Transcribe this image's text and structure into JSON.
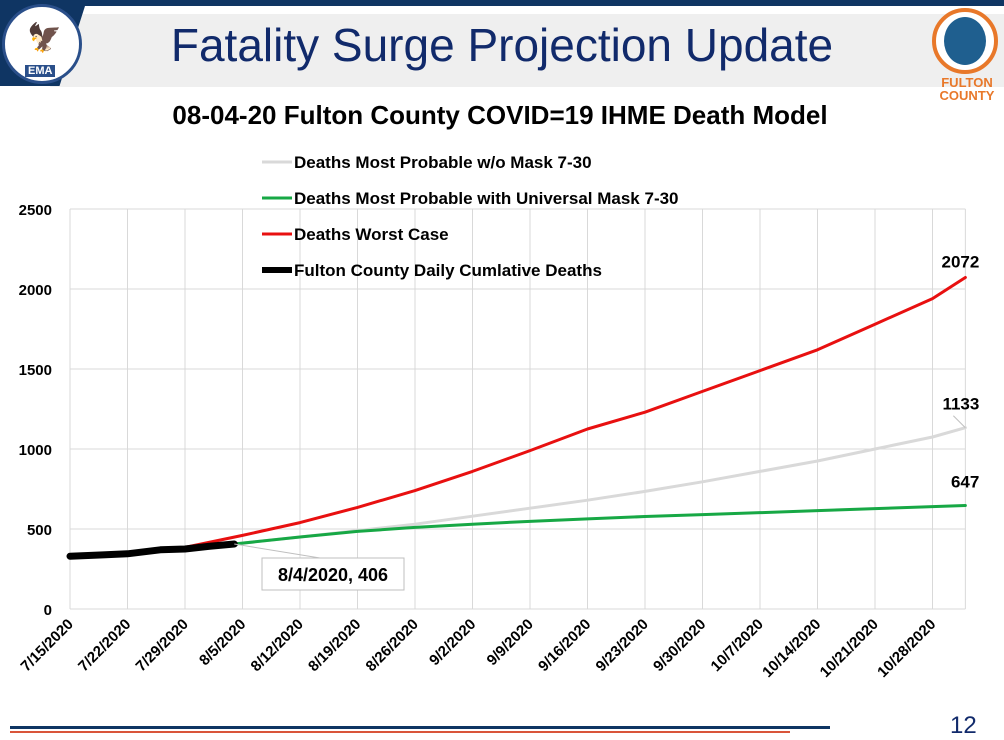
{
  "header": {
    "title": "Fatality Surge Projection Update",
    "page_number": "12",
    "left_logo_text": "EMA",
    "right_logo_text": "FULTON COUNTY"
  },
  "chart_data": {
    "type": "line",
    "title": "08-04-20 Fulton County COVID=19 IHME Death Model",
    "ylim": [
      0,
      2500
    ],
    "yticks": [
      0,
      500,
      1000,
      1500,
      2000,
      2500
    ],
    "xlim": [
      "2020-07-15",
      "2020-11-01"
    ],
    "xtick_labels": [
      "7/15/2020",
      "7/22/2020",
      "7/29/2020",
      "8/5/2020",
      "8/12/2020",
      "8/19/2020",
      "8/26/2020",
      "9/2/2020",
      "9/9/2020",
      "9/16/2020",
      "9/23/2020",
      "9/30/2020",
      "10/7/2020",
      "10/14/2020",
      "10/21/2020",
      "10/28/2020"
    ],
    "grid": true,
    "legend_position": "top",
    "series": [
      {
        "name": "Deaths Most Probable w/o Mask 7-30",
        "color": "#d9d9d9",
        "end_label": "1133",
        "x": [
          "2020-08-04",
          "2020-08-12",
          "2020-08-19",
          "2020-08-26",
          "2020-09-02",
          "2020-09-09",
          "2020-09-16",
          "2020-09-23",
          "2020-09-30",
          "2020-10-07",
          "2020-10-14",
          "2020-10-21",
          "2020-10-28",
          "2020-11-01"
        ],
        "y": [
          406,
          450,
          490,
          530,
          580,
          630,
          680,
          735,
          795,
          860,
          925,
          1000,
          1075,
          1133
        ]
      },
      {
        "name": "Deaths Most Probable with Universal Mask 7-30",
        "color": "#17a845",
        "end_label": "647",
        "x": [
          "2020-08-04",
          "2020-08-12",
          "2020-08-19",
          "2020-08-26",
          "2020-09-02",
          "2020-09-09",
          "2020-09-16",
          "2020-09-23",
          "2020-09-30",
          "2020-10-07",
          "2020-10-14",
          "2020-10-21",
          "2020-10-28",
          "2020-11-01"
        ],
        "y": [
          406,
          450,
          485,
          510,
          530,
          548,
          563,
          578,
          590,
          602,
          615,
          627,
          640,
          647
        ]
      },
      {
        "name": "Deaths Worst Case",
        "color": "#e81010",
        "end_label": "2072",
        "x": [
          "2020-07-29",
          "2020-08-05",
          "2020-08-12",
          "2020-08-19",
          "2020-08-26",
          "2020-09-02",
          "2020-09-09",
          "2020-09-16",
          "2020-09-23",
          "2020-09-30",
          "2020-10-07",
          "2020-10-14",
          "2020-10-21",
          "2020-10-28",
          "2020-11-01"
        ],
        "y": [
          385,
          460,
          540,
          635,
          740,
          860,
          990,
          1125,
          1230,
          1360,
          1490,
          1620,
          1780,
          1940,
          2072
        ]
      },
      {
        "name": "Fulton County Daily Cumlative Deaths",
        "color": "#000000",
        "x": [
          "2020-07-15",
          "2020-07-19",
          "2020-07-22",
          "2020-07-26",
          "2020-07-29",
          "2020-08-01",
          "2020-08-04"
        ],
        "y": [
          330,
          338,
          345,
          370,
          375,
          392,
          406
        ]
      }
    ],
    "annotations": [
      {
        "text": "8/4/2020, 406",
        "x": "2020-08-04",
        "y": 406
      }
    ]
  }
}
